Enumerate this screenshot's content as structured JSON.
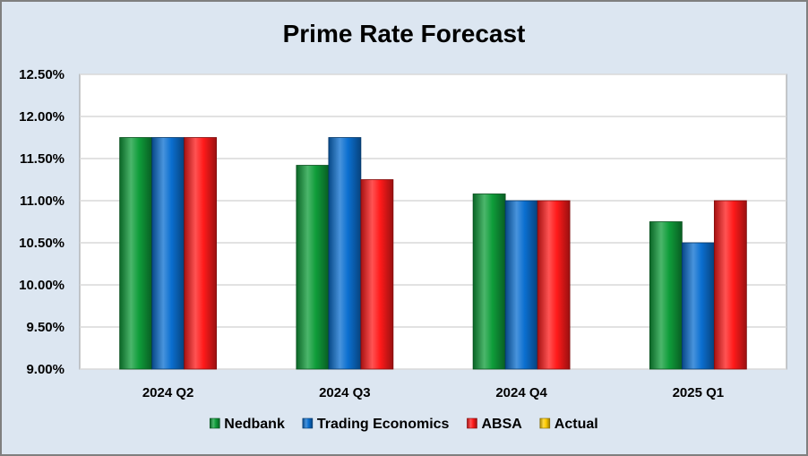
{
  "chart_data": {
    "type": "bar",
    "title": "Prime Rate Forecast",
    "xlabel": "",
    "ylabel": "",
    "categories": [
      "2024 Q2",
      "2024 Q3",
      "2024 Q4",
      "2025 Q1"
    ],
    "ylim": [
      9.0,
      12.5
    ],
    "yticks": [
      9.0,
      9.5,
      10.0,
      10.5,
      11.0,
      11.5,
      12.0,
      12.5
    ],
    "ytick_labels": [
      "9.00%",
      "9.50%",
      "10.00%",
      "10.50%",
      "11.00%",
      "11.50%",
      "12.00%",
      "12.50%"
    ],
    "grid": true,
    "legend_position": "bottom",
    "series": [
      {
        "name": "Nedbank",
        "color": "#0f9d3a",
        "values": [
          11.75,
          11.42,
          11.08,
          10.75
        ]
      },
      {
        "name": "Trading Economics",
        "color": "#0b6fd0",
        "values": [
          11.75,
          11.75,
          11.0,
          10.5
        ]
      },
      {
        "name": "ABSA",
        "color": "#ff1a1a",
        "values": [
          11.75,
          11.25,
          11.0,
          11.0
        ]
      },
      {
        "name": "Actual",
        "color": "#ffcc00",
        "values": [
          null,
          null,
          null,
          null
        ]
      }
    ]
  }
}
